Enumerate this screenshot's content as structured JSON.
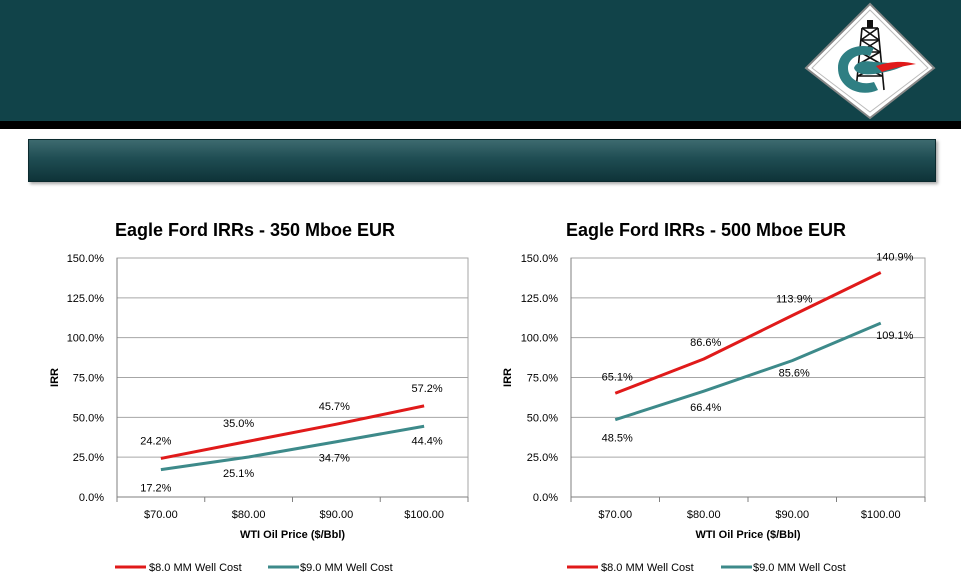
{
  "colors": {
    "header": "#114349",
    "series1": "#e01a1a",
    "series2": "#3d8a8a"
  },
  "logo": {
    "icon": "oil-derrick-logo"
  },
  "chart_data": [
    {
      "type": "line",
      "title": "Eagle Ford IRRs - 350 Mboe EUR",
      "xlabel": "WTI Oil Price ($/Bbl)",
      "ylabel": "IRR",
      "categories": [
        "$70.00",
        "$80.00",
        "$90.00",
        "$100.00"
      ],
      "ylim": [
        0,
        150
      ],
      "yticks": [
        0,
        25,
        50,
        75,
        100,
        125,
        150
      ],
      "ytick_labels": [
        "0.0%",
        "25.0%",
        "50.0%",
        "75.0%",
        "100.0%",
        "125.0%",
        "150.0%"
      ],
      "grid": true,
      "legend_position": "bottom",
      "series": [
        {
          "name": "$8.0 MM Well Cost",
          "color": "#e01a1a",
          "values": [
            24.2,
            35.0,
            45.7,
            57.2
          ],
          "labels": [
            "24.2%",
            "35.0%",
            "45.7%",
            "57.2%"
          ]
        },
        {
          "name": "$9.0 MM Well Cost",
          "color": "#3d8a8a",
          "values": [
            17.2,
            25.1,
            34.7,
            44.4
          ],
          "labels": [
            "17.2%",
            "25.1%",
            "34.7%",
            "44.4%"
          ]
        }
      ]
    },
    {
      "type": "line",
      "title": "Eagle Ford IRRs - 500 Mboe EUR",
      "xlabel": "WTI Oil Price ($/Bbl)",
      "ylabel": "IRR",
      "categories": [
        "$70.00",
        "$80.00",
        "$90.00",
        "$100.00"
      ],
      "ylim": [
        0,
        150
      ],
      "yticks": [
        0,
        25,
        50,
        75,
        100,
        125,
        150
      ],
      "ytick_labels": [
        "0.0%",
        "25.0%",
        "50.0%",
        "75.0%",
        "100.0%",
        "125.0%",
        "150.0%"
      ],
      "grid": true,
      "legend_position": "bottom",
      "series": [
        {
          "name": "$8.0 MM Well Cost",
          "color": "#e01a1a",
          "values": [
            65.1,
            86.6,
            113.9,
            140.9
          ],
          "labels": [
            "65.1%",
            "86.6%",
            "113.9%",
            "140.9%"
          ]
        },
        {
          "name": "$9.0 MM Well Cost",
          "color": "#3d8a8a",
          "values": [
            48.5,
            66.4,
            85.6,
            109.1
          ],
          "labels": [
            "48.5%",
            "66.4%",
            "85.6%",
            "109.1%"
          ]
        }
      ]
    }
  ]
}
